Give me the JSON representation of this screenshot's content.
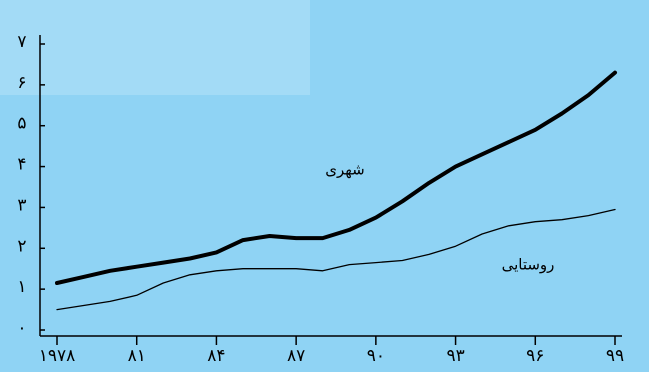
{
  "chart_data": {
    "type": "line",
    "x": [
      1978,
      1979,
      1980,
      1981,
      1982,
      1983,
      1984,
      1985,
      1986,
      1987,
      1988,
      1989,
      1990,
      1991,
      1992,
      1993,
      1994,
      1995,
      1996,
      1997,
      1998,
      1999
    ],
    "series": [
      {
        "name": "شهری",
        "color": "#000000",
        "values": [
          1.15,
          1.3,
          1.45,
          1.55,
          1.65,
          1.75,
          1.9,
          2.2,
          2.3,
          2.25,
          2.25,
          2.45,
          2.75,
          3.15,
          3.6,
          4.0,
          4.3,
          4.6,
          4.9,
          5.3,
          5.75,
          6.3
        ]
      },
      {
        "name": "روستایی",
        "color": "#000000",
        "values": [
          0.5,
          0.6,
          0.7,
          0.85,
          1.15,
          1.35,
          1.45,
          1.5,
          1.5,
          1.5,
          1.45,
          1.6,
          1.65,
          1.7,
          1.85,
          2.05,
          2.35,
          2.55,
          2.65,
          2.7,
          2.8,
          2.95
        ]
      }
    ],
    "xlim": [
      1978,
      1999
    ],
    "xticks": [
      {
        "value": 1978,
        "label": "۱۹۷۸"
      },
      {
        "value": 1981,
        "label": "۸۱"
      },
      {
        "value": 1984,
        "label": "۸۴"
      },
      {
        "value": 1987,
        "label": "۸۷"
      },
      {
        "value": 1990,
        "label": "۹۰"
      },
      {
        "value": 1993,
        "label": "۹۳"
      },
      {
        "value": 1996,
        "label": "۹۶"
      },
      {
        "value": 1999,
        "label": "۹۹"
      }
    ],
    "ylim": [
      0,
      7
    ],
    "yticks": [
      {
        "value": 0,
        "label": "۰"
      },
      {
        "value": 1,
        "label": "۱"
      },
      {
        "value": 2,
        "label": "۲"
      },
      {
        "value": 3,
        "label": "۳"
      },
      {
        "value": 4,
        "label": "۴"
      },
      {
        "value": 5,
        "label": "۵"
      },
      {
        "value": 6,
        "label": "۶"
      },
      {
        "value": 7,
        "label": "۷"
      }
    ]
  }
}
